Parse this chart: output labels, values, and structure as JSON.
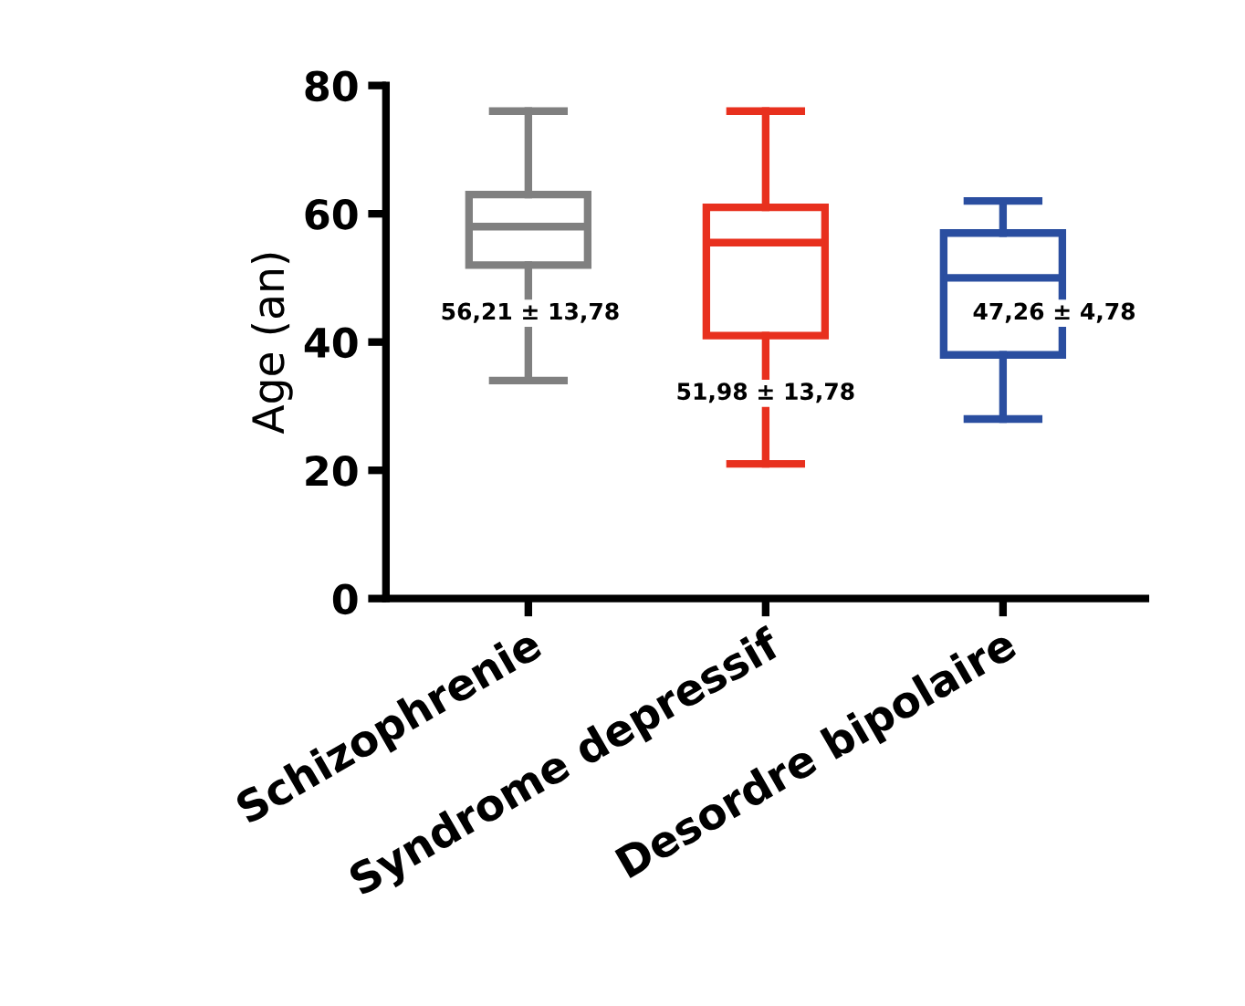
{
  "chart_data": {
    "type": "box",
    "ylabel": "Age (an)",
    "categories": [
      "Schizophrenie",
      "Syndrome depressif",
      "Desordre bipolaire"
    ],
    "colors": [
      "#808080",
      "#e8301e",
      "#2a4ea0"
    ],
    "boxes": [
      {
        "low": 34,
        "q1": 52,
        "median": 58,
        "q3": 63,
        "high": 76
      },
      {
        "low": 21,
        "q1": 41,
        "median": 55.5,
        "q3": 61,
        "high": 76
      },
      {
        "low": 28,
        "q1": 38,
        "median": 50,
        "q3": 57,
        "high": 62
      }
    ],
    "annotations": [
      "56,21 ± 13,78",
      "51,98 ± 13,78",
      "47,26 ± 4,78"
    ],
    "ylim": [
      0,
      80
    ],
    "yticks": [
      0,
      20,
      40,
      60,
      80
    ],
    "grid": false,
    "legend": false
  }
}
